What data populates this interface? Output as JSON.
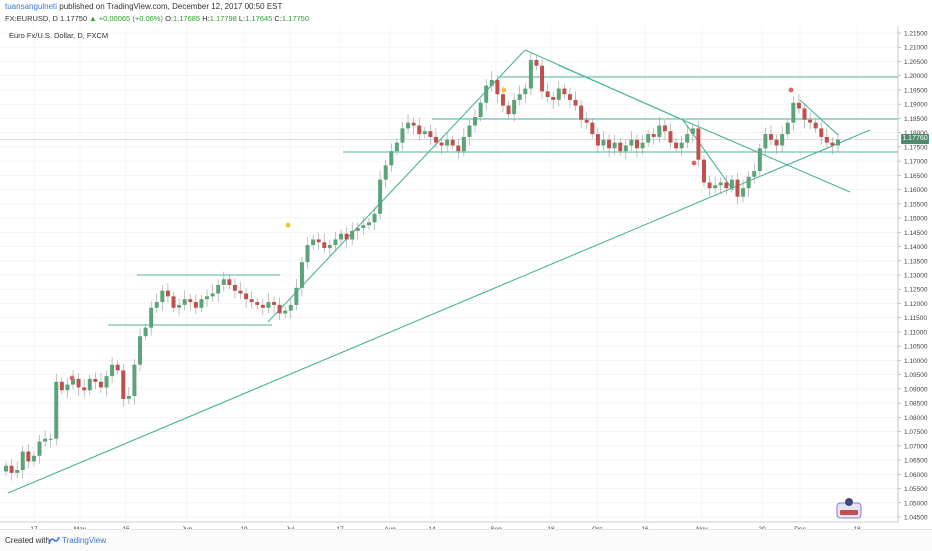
{
  "header": {
    "author": "tuansangulneti",
    "published_text": "published on TradingView.com, December 12, 2017 00:50 EST"
  },
  "quote": {
    "symbol": "FX:EURUSD, D",
    "last": "1.17750",
    "change": "▲ +0.00065 (+0.06%)",
    "open_label": "O:",
    "open": "1.17685",
    "high_label": "H:",
    "high": "1.17798",
    "low_label": "L:",
    "low": "1.17645",
    "close_label": "C:",
    "close": "1.17750"
  },
  "series_title": "Euro Fx/U.S. Dollar, D, FXCM",
  "price_label": "1.17760",
  "footer": {
    "created_with": "Created with",
    "brand": "TradingView"
  },
  "colors": {
    "up_candle": "#5aa477",
    "down_candle": "#c0504d",
    "trendline": "#4bb49a",
    "grid": "#eeeeee",
    "marker_red": "#e06666",
    "marker_yellow": "#f1c232"
  },
  "chart_data": {
    "type": "candlestick",
    "ylim": [
      1.0455,
      1.2185
    ],
    "y_ticks": [
      "1.21500",
      "1.21000",
      "1.20500",
      "1.20000",
      "1.19500",
      "1.19000",
      "1.18500",
      "1.18000",
      "1.17500",
      "1.17000",
      "1.16500",
      "1.16000",
      "1.15500",
      "1.15000",
      "1.14500",
      "1.14000",
      "1.13500",
      "1.13000",
      "1.12500",
      "1.12000",
      "1.11500",
      "1.11000",
      "1.10500",
      "1.10000",
      "1.09500",
      "1.09000",
      "1.08500",
      "1.08000",
      "1.07500",
      "1.07000",
      "1.06500",
      "1.06000",
      "1.05500",
      "1.05000",
      "1.04500"
    ],
    "x_ticks": [
      "17",
      "May",
      "15",
      "Jun",
      "19",
      "Jul",
      "17",
      "Aug",
      "14",
      "Sep",
      "18",
      "Oct",
      "16",
      "Nov",
      "20",
      "Dec",
      "18"
    ],
    "closes": [
      1.063,
      1.0605,
      1.0615,
      1.068,
      1.0645,
      1.0665,
      1.0715,
      1.0725,
      1.0725,
      1.0925,
      1.0895,
      1.0915,
      1.0935,
      1.0905,
      1.0895,
      1.0935,
      1.0925,
      1.0905,
      1.0945,
      1.0985,
      1.0965,
      1.0865,
      1.0875,
      1.0985,
      1.1085,
      1.1115,
      1.1185,
      1.1205,
      1.1245,
      1.1225,
      1.1185,
      1.1195,
      1.1215,
      1.1205,
      1.1185,
      1.1215,
      1.1225,
      1.1235,
      1.1265,
      1.1285,
      1.1265,
      1.1245,
      1.1235,
      1.1215,
      1.1205,
      1.1195,
      1.1185,
      1.1205,
      1.1195,
      1.1165,
      1.1175,
      1.1195,
      1.1255,
      1.1345,
      1.1405,
      1.1425,
      1.1415,
      1.1395,
      1.1405,
      1.1425,
      1.1445,
      1.1425,
      1.1455,
      1.1465,
      1.1475,
      1.1485,
      1.1515,
      1.1635,
      1.1685,
      1.1735,
      1.1765,
      1.1815,
      1.1835,
      1.1825,
      1.1795,
      1.1805,
      1.1785,
      1.1765,
      1.1755,
      1.1775,
      1.1755,
      1.1735,
      1.1785,
      1.1825,
      1.1855,
      1.1905,
      1.1965,
      1.1985,
      1.1935,
      1.1895,
      1.1865,
      1.1915,
      1.1935,
      1.1955,
      1.2055,
      1.2035,
      1.1945,
      1.1925,
      1.1915,
      1.1955,
      1.1935,
      1.1915,
      1.1895,
      1.1845,
      1.1835,
      1.1795,
      1.1755,
      1.1775,
      1.1745,
      1.1765,
      1.1735,
      1.1755,
      1.1775,
      1.1745,
      1.1765,
      1.1795,
      1.1785,
      1.1825,
      1.1805,
      1.1765,
      1.1745,
      1.1765,
      1.1795,
      1.1815,
      1.1705,
      1.1625,
      1.1605,
      1.1615,
      1.1625,
      1.1605,
      1.1635,
      1.1575,
      1.1605,
      1.1645,
      1.1665,
      1.1745,
      1.1795,
      1.1775,
      1.1755,
      1.1795,
      1.1835,
      1.1905,
      1.1885,
      1.1845,
      1.1835,
      1.1815,
      1.1785,
      1.1765,
      1.1755,
      1.1775
    ]
  }
}
